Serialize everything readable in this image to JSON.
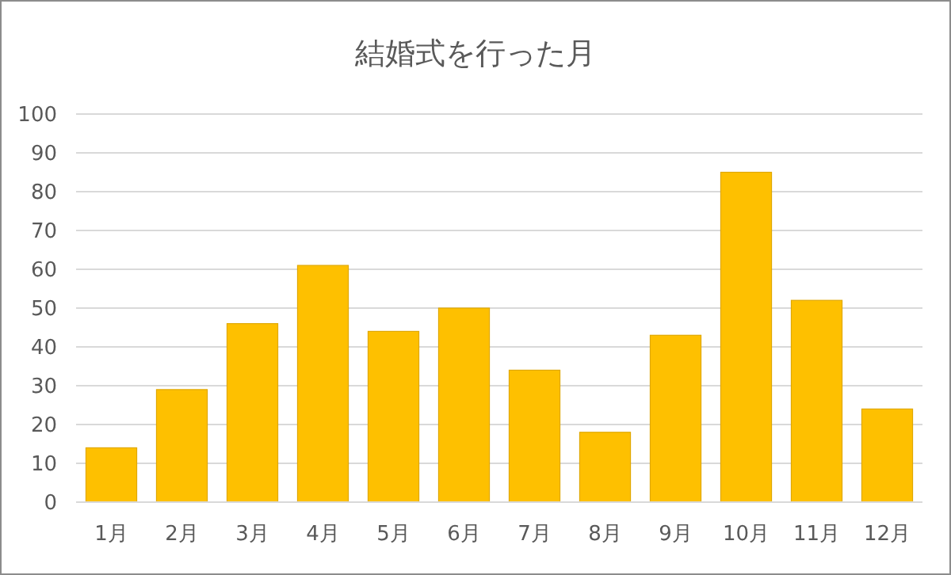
{
  "chart_data": {
    "type": "bar",
    "title": "結婚式を行った月",
    "categories": [
      "1月",
      "2月",
      "3月",
      "4月",
      "5月",
      "6月",
      "7月",
      "8月",
      "9月",
      "10月",
      "11月",
      "12月"
    ],
    "values": [
      14,
      29,
      46,
      61,
      44,
      50,
      34,
      18,
      43,
      85,
      52,
      24
    ],
    "color": "#fec000",
    "ylim": [
      0,
      100
    ],
    "yticks": [
      0,
      10,
      20,
      30,
      40,
      50,
      60,
      70,
      80,
      90,
      100
    ],
    "grid": "y"
  }
}
